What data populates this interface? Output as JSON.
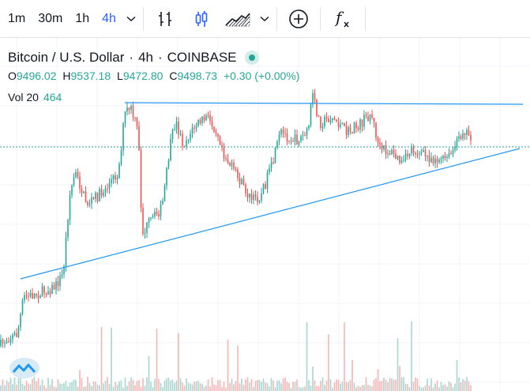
{
  "toolbar": {
    "timeframes": [
      "1m",
      "30m",
      "1h",
      "4h"
    ],
    "active_timeframe": "4h",
    "function_label": "f"
  },
  "symbol": {
    "name": "Bitcoin / U.S. Dollar",
    "interval": "4h",
    "exchange": "COINBASE",
    "separator": "·"
  },
  "ohlc": {
    "open_key": "O",
    "open": "9496.02",
    "high_key": "H",
    "high": "9537.18",
    "low_key": "L",
    "low": "9472.80",
    "close_key": "C",
    "close": "9498.73",
    "change": "+0.30 (+0.00%)"
  },
  "volume": {
    "label": "Vol 20",
    "value": "464"
  },
  "colors": {
    "up": "#26a69a",
    "down": "#ef5350",
    "trendline": "#2196f3",
    "accent": "#2962ff"
  },
  "icons": [
    "bar-chart-icon",
    "candles-icon",
    "area-chart-icon",
    "chevron-down-icon",
    "add-compare-icon",
    "indicators-icon",
    "tradingview-logo-icon"
  ]
}
